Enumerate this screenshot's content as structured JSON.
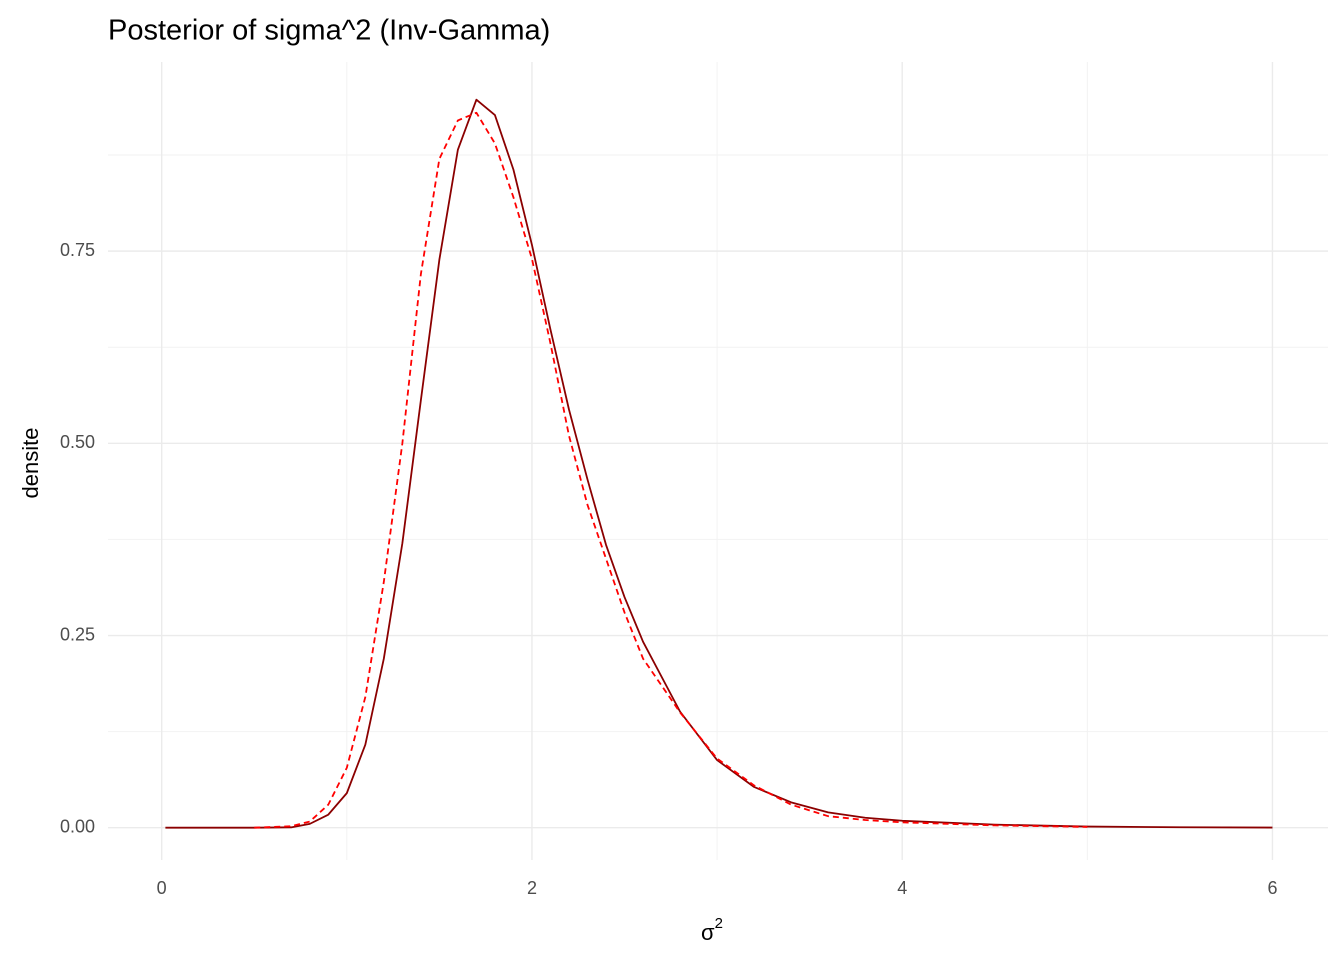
{
  "chart_data": {
    "type": "line",
    "title": "Posterior of sigma^2 (Inv-Gamma)",
    "xlabel": {
      "text": "σ",
      "superscript": "2"
    },
    "ylabel": "densite",
    "xlim": [
      -0.29,
      6.3
    ],
    "xticks": [
      0,
      2,
      4,
      6
    ],
    "xminor": [
      1,
      3,
      5
    ],
    "ylim": [
      -0.042,
      0.996
    ],
    "yticks": [
      {
        "value": 0,
        "label": "0.00"
      },
      {
        "value": 0.25,
        "label": "0.25"
      },
      {
        "value": 0.5,
        "label": "0.50"
      },
      {
        "value": 0.75,
        "label": "0.75"
      }
    ],
    "yminor": [
      0.125,
      0.375,
      0.625,
      0.875
    ],
    "grid": true,
    "series": [
      {
        "color": "#8b0000",
        "dashed": false,
        "x": [
          0.02,
          0.5,
          0.7,
          0.8,
          0.9,
          1.0,
          1.1,
          1.2,
          1.3,
          1.4,
          1.5,
          1.6,
          1.7,
          1.8,
          1.9,
          2.0,
          2.1,
          2.2,
          2.3,
          2.4,
          2.5,
          2.6,
          2.8,
          3.0,
          3.2,
          3.4,
          3.6,
          3.8,
          4.0,
          4.5,
          5.0,
          5.5,
          6.0
        ],
        "values": [
          0,
          0,
          0.0005,
          0.005,
          0.017,
          0.045,
          0.108,
          0.22,
          0.37,
          0.556,
          0.739,
          0.882,
          0.947,
          0.927,
          0.856,
          0.758,
          0.648,
          0.544,
          0.453,
          0.368,
          0.3,
          0.242,
          0.151,
          0.088,
          0.053,
          0.033,
          0.02,
          0.013,
          0.009,
          0.004,
          0.0015,
          0.0006,
          0.0002
        ]
      },
      {
        "color": "#ff0000",
        "dashed": true,
        "x": [
          0.5,
          0.7,
          0.8,
          0.9,
          1.0,
          1.1,
          1.2,
          1.3,
          1.4,
          1.5,
          1.6,
          1.7,
          1.8,
          1.9,
          2.0,
          2.1,
          2.2,
          2.3,
          2.4,
          2.5,
          2.6,
          2.8,
          3.0,
          3.2,
          3.4,
          3.6,
          3.8,
          4.0,
          4.5,
          5.0
        ],
        "values": [
          0,
          0.002,
          0.008,
          0.03,
          0.078,
          0.17,
          0.32,
          0.5,
          0.72,
          0.87,
          0.92,
          0.93,
          0.89,
          0.82,
          0.74,
          0.63,
          0.51,
          0.42,
          0.35,
          0.28,
          0.22,
          0.15,
          0.09,
          0.055,
          0.03,
          0.015,
          0.01,
          0.007,
          0.003,
          0.001
        ]
      }
    ]
  }
}
